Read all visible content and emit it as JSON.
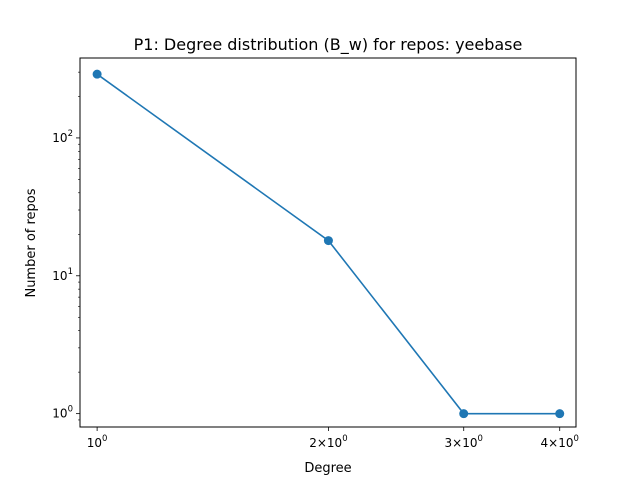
{
  "chart_data": {
    "type": "line",
    "title": "P1: Degree distribution (B_w) for repos: yeebase",
    "xlabel": "Degree",
    "ylabel": "Number of repos",
    "xscale": "log",
    "yscale": "log",
    "xlim": [
      0.95,
      4.2
    ],
    "ylim": [
      0.8,
      380
    ],
    "grid": false,
    "legend": "none",
    "series": [
      {
        "x": [
          1,
          2,
          3,
          4
        ],
        "y": [
          290,
          18,
          1,
          1
        ],
        "color": "#1f77b4",
        "marker": "circle"
      }
    ],
    "x_ticks": [
      {
        "value": 1,
        "mantissa": "",
        "base": "10",
        "exp": "0"
      },
      {
        "value": 2,
        "mantissa": "2×",
        "base": "10",
        "exp": "0"
      },
      {
        "value": 3,
        "mantissa": "3×",
        "base": "10",
        "exp": "0"
      },
      {
        "value": 4,
        "mantissa": "4×",
        "base": "10",
        "exp": "0"
      }
    ],
    "y_ticks": [
      {
        "value": 1,
        "base": "10",
        "exp": "0"
      },
      {
        "value": 10,
        "base": "10",
        "exp": "1"
      },
      {
        "value": 100,
        "base": "10",
        "exp": "2"
      }
    ]
  }
}
